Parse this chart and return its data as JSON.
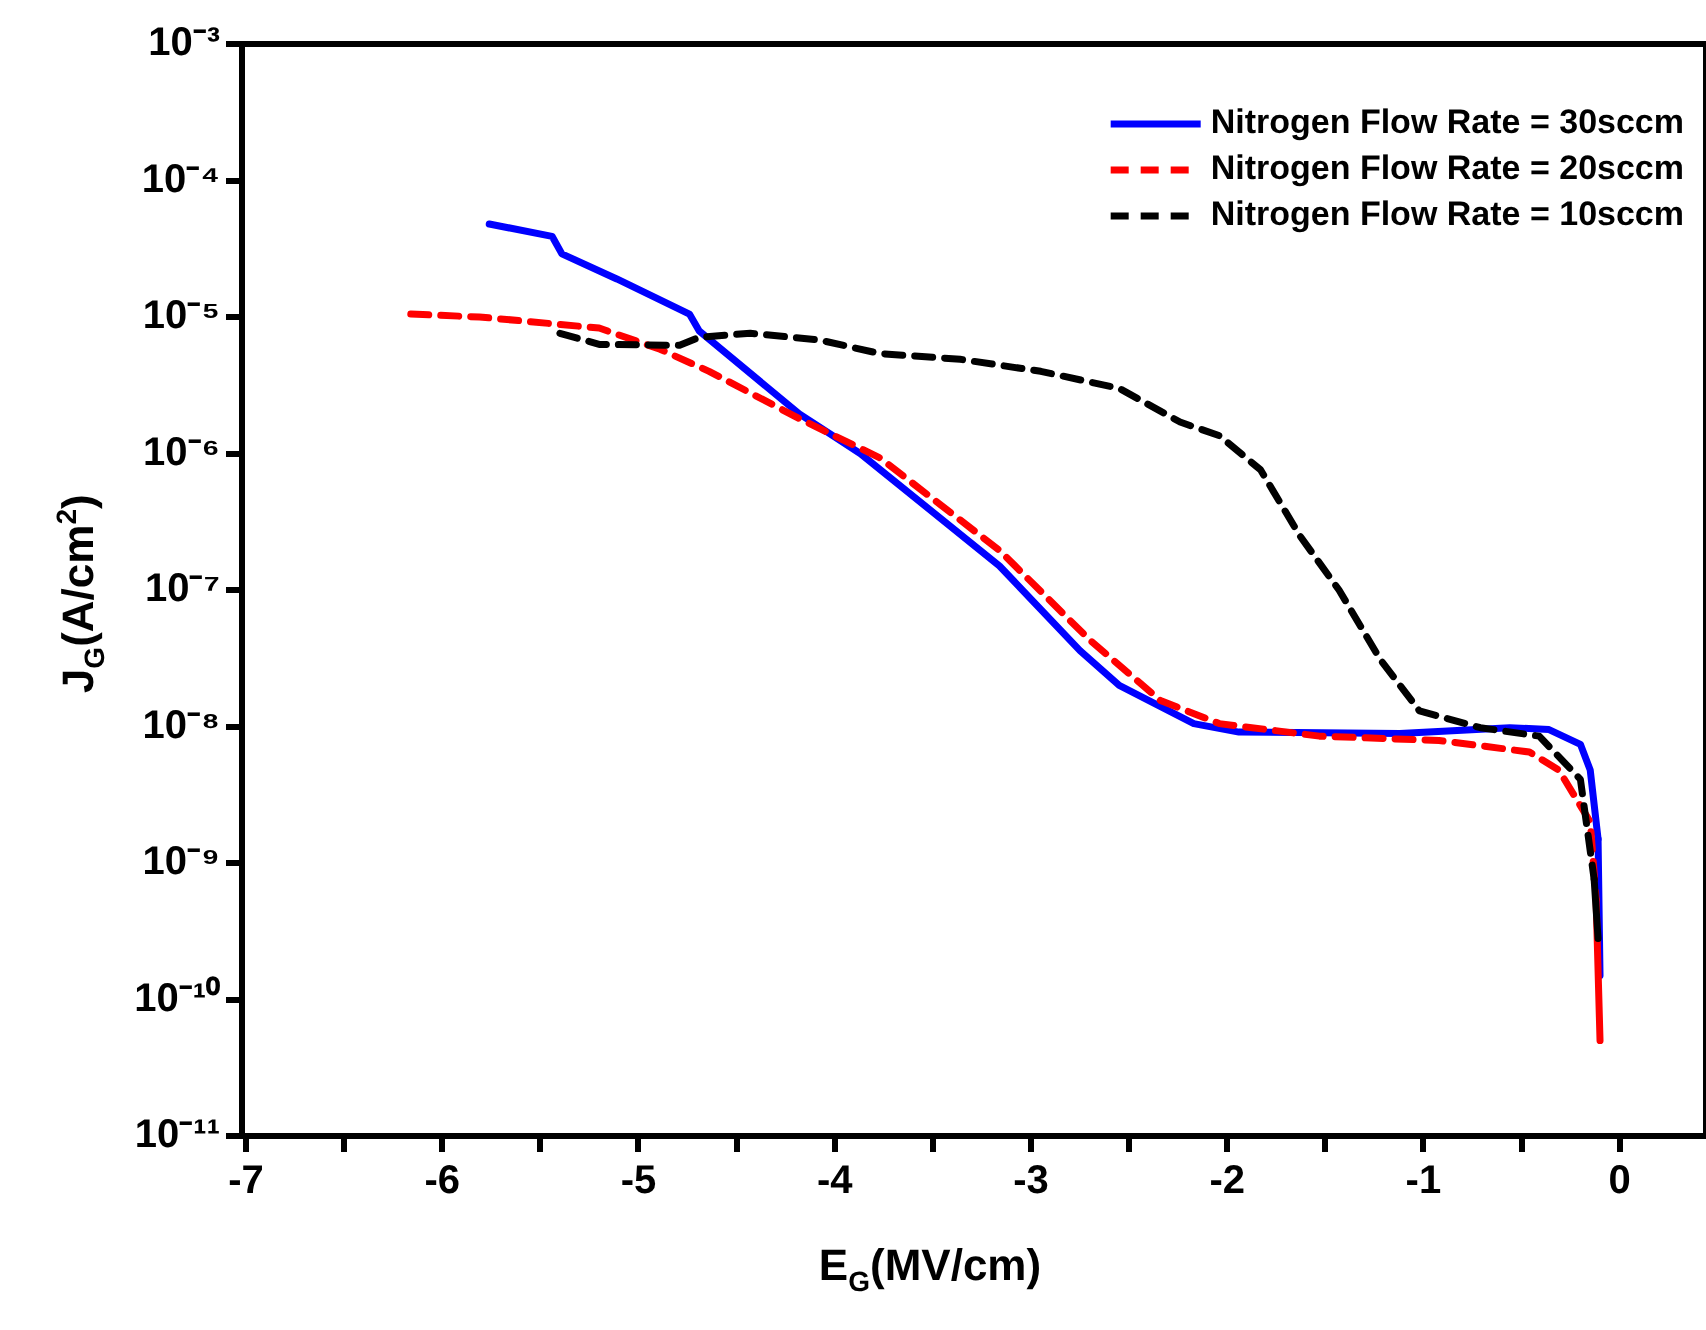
{
  "chart_data": {
    "type": "line",
    "xlabel": "E$_{G}$(MV/cm)",
    "ylabel": "J$_{G}$(A/cm$^{2}$)",
    "log": "y",
    "grid": false,
    "legend": "top right",
    "marker": "none",
    "xlim": [
      -7.02,
      0.44
    ],
    "xticks": [
      -7,
      {
        "value": -6.5,
        "label": null
      },
      -6,
      {
        "value": -5.5,
        "label": null
      },
      -5,
      {
        "value": -4.5,
        "label": null
      },
      -4,
      {
        "value": -3.5,
        "label": null
      },
      -3,
      {
        "value": -2.5,
        "label": null
      },
      -2,
      {
        "value": -1.5,
        "label": null
      },
      -1,
      {
        "value": -0.5,
        "label": null
      },
      0
    ],
    "ylim": [
      1e-11,
      0.001
    ],
    "yticks": [
      {
        "value": 1e-11,
        "label": "10⁻¹¹"
      },
      {
        "value": 1e-10,
        "label": "10⁻¹⁰"
      },
      {
        "value": 1e-09,
        "label": "10⁻⁹"
      },
      {
        "value": 1e-08,
        "label": "10⁻⁸"
      },
      {
        "value": 1e-07,
        "label": "10⁻⁷"
      },
      {
        "value": 1e-06,
        "label": "10⁻⁶"
      },
      {
        "value": 1e-05,
        "label": "10⁻⁵"
      },
      {
        "value": 0.0001,
        "label": "10⁻⁴"
      },
      {
        "value": 0.001,
        "label": "10⁻³"
      }
    ],
    "series": [
      {
        "name": "Nitrogen Flow Rate = 30sccm",
        "color": "#0000ff",
        "line_style": "solid",
        "x": [
          -5.76,
          -5.44,
          -5.39,
          -5.11,
          -4.74,
          -4.69,
          -4.18,
          -3.87,
          -3.16,
          -2.75,
          -2.55,
          -2.17,
          -1.94,
          -1.12,
          -0.56,
          -0.36,
          -0.2,
          -0.15,
          -0.11,
          -0.1
        ],
        "values": [
          4.8e-05,
          3.9e-05,
          2.9e-05,
          1.9e-05,
          1.05e-05,
          7.9e-06,
          1.95e-06,
          1e-06,
          1.5e-07,
          3.6e-08,
          2e-08,
          1.05e-08,
          9.1e-09,
          8.9e-09,
          9.8e-09,
          9.5e-09,
          7.4e-09,
          4.8e-09,
          1.5e-09,
          1.5e-10
        ]
      },
      {
        "name": "Nitrogen Flow Rate = 20sccm",
        "color": "#ff0000",
        "line_style": "dashed",
        "x": [
          -6.16,
          -5.81,
          -5.2,
          -4.89,
          -4.64,
          -4.18,
          -3.77,
          -3.16,
          -2.7,
          -2.34,
          -2.04,
          -1.53,
          -0.92,
          -0.46,
          -0.31,
          -0.15,
          -0.12,
          -0.1
        ],
        "values": [
          1.05e-05,
          1e-05,
          8.3e-06,
          5.8e-06,
          4e-06,
          1.8e-06,
          9.3e-07,
          1.95e-07,
          4.3e-08,
          1.55e-08,
          1.05e-08,
          8.5e-09,
          7.9e-09,
          6.5e-09,
          4.8e-09,
          2e-09,
          5.4e-10,
          5e-11
        ]
      },
      {
        "name": "Nitrogen Flow Rate = 10sccm",
        "color": "#000000",
        "line_style": "dashed",
        "x": [
          -5.4,
          -5.2,
          -4.79,
          -4.69,
          -4.43,
          -4.08,
          -3.77,
          -3.36,
          -2.95,
          -2.55,
          -2.24,
          -2.04,
          -1.83,
          -1.63,
          -1.43,
          -1.22,
          -1.02,
          -0.71,
          -0.41,
          -0.2,
          -0.13,
          -0.11
        ],
        "values": [
          7.6e-06,
          6.3e-06,
          6.2e-06,
          7.1e-06,
          7.6e-06,
          6.8e-06,
          5.4e-06,
          4.9e-06,
          4e-06,
          3e-06,
          1.7e-06,
          1.35e-06,
          7.6e-07,
          2.5e-07,
          1e-07,
          3.1e-08,
          1.3e-08,
          9.8e-09,
          8.5e-09,
          4.1e-09,
          7.6e-10,
          2.8e-10
        ]
      }
    ]
  }
}
